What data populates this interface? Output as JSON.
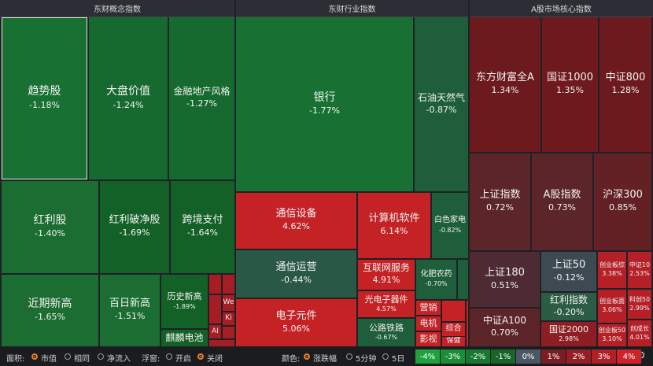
{
  "panels": [
    {
      "title": "东财概念指数",
      "tiles": [
        {
          "name": "趋势股",
          "change": "-1.18%"
        },
        {
          "name": "大盘价值",
          "change": "-1.24%"
        },
        {
          "name": "金融地产风格",
          "change": "-1.27%"
        },
        {
          "name": "红利股",
          "change": "-1.40%"
        },
        {
          "name": "红利破净股",
          "change": "-1.69%"
        },
        {
          "name": "跨境支付",
          "change": "-1.64%"
        },
        {
          "name": "近期新高",
          "change": "-1.65%"
        },
        {
          "name": "百日新高",
          "change": "-1.51%"
        },
        {
          "name": "历史新高",
          "change": "-1.89%"
        },
        {
          "name": "麒麟电池"
        },
        {
          "name": "We"
        },
        {
          "name": "Ki"
        },
        {
          "name": "AI"
        }
      ]
    },
    {
      "title": "东财行业指数",
      "tiles": [
        {
          "name": "银行",
          "change": "-1.77%"
        },
        {
          "name": "石油天然气",
          "change": "-0.87%"
        },
        {
          "name": "通信设备",
          "change": "4.62%"
        },
        {
          "name": "计算机软件",
          "change": "6.14%"
        },
        {
          "name": "白色家电",
          "change": "-0.82%"
        },
        {
          "name": "通信运营",
          "change": "-0.44%"
        },
        {
          "name": "电子元件",
          "change": "5.06%"
        },
        {
          "name": "互联网服务",
          "change": "4.91%"
        },
        {
          "name": "光电子器件",
          "change": "4.57%"
        },
        {
          "name": "公路铁路",
          "change": "-0.67%"
        },
        {
          "name": "化肥农药",
          "change": "-0.70%"
        },
        {
          "name": "营销"
        },
        {
          "name": "电机"
        },
        {
          "name": "影视"
        },
        {
          "name": "综合"
        },
        {
          "name": "保健"
        }
      ]
    },
    {
      "title": "A股市场核心指数",
      "tiles": [
        {
          "name": "东方财富全A",
          "change": "1.34%"
        },
        {
          "name": "国证1000",
          "change": "1.35%"
        },
        {
          "name": "中证800",
          "change": "1.28%"
        },
        {
          "name": "上证指数",
          "change": "0.72%"
        },
        {
          "name": "A股指数",
          "change": "0.73%"
        },
        {
          "name": "沪深300",
          "change": "0.85%"
        },
        {
          "name": "上证180",
          "change": "0.51%"
        },
        {
          "name": "中证A100",
          "change": "0.70%"
        },
        {
          "name": "上证50",
          "change": "-0.12%"
        },
        {
          "name": "红利指数",
          "change": "-0.20%"
        },
        {
          "name": "国证2000",
          "change": "2.98%"
        },
        {
          "name": "创业板综",
          "change": "3.38%"
        },
        {
          "name": "中证10",
          "change": "2.53%"
        },
        {
          "name": "创业板面",
          "change": "3.06%"
        },
        {
          "name": "创业板50",
          "change": "3.10%"
        },
        {
          "name": "科创50",
          "change": "2.99%"
        },
        {
          "name": "创成长",
          "change": "4.01%"
        }
      ]
    }
  ],
  "toolbar": {
    "area": {
      "label": "面积:",
      "options": [
        "市值",
        "相同",
        "净流入"
      ]
    },
    "popup": {
      "label": "浮窗:",
      "options": [
        "开启",
        "关闭"
      ]
    },
    "color": {
      "label": "颜色:",
      "options": [
        "涨跌幅",
        "5分钟",
        "5日"
      ]
    },
    "legend": [
      "-4%",
      "-3%",
      "-2%",
      "-1%",
      "0%",
      "1%",
      "2%",
      "3%",
      "4%"
    ]
  }
}
